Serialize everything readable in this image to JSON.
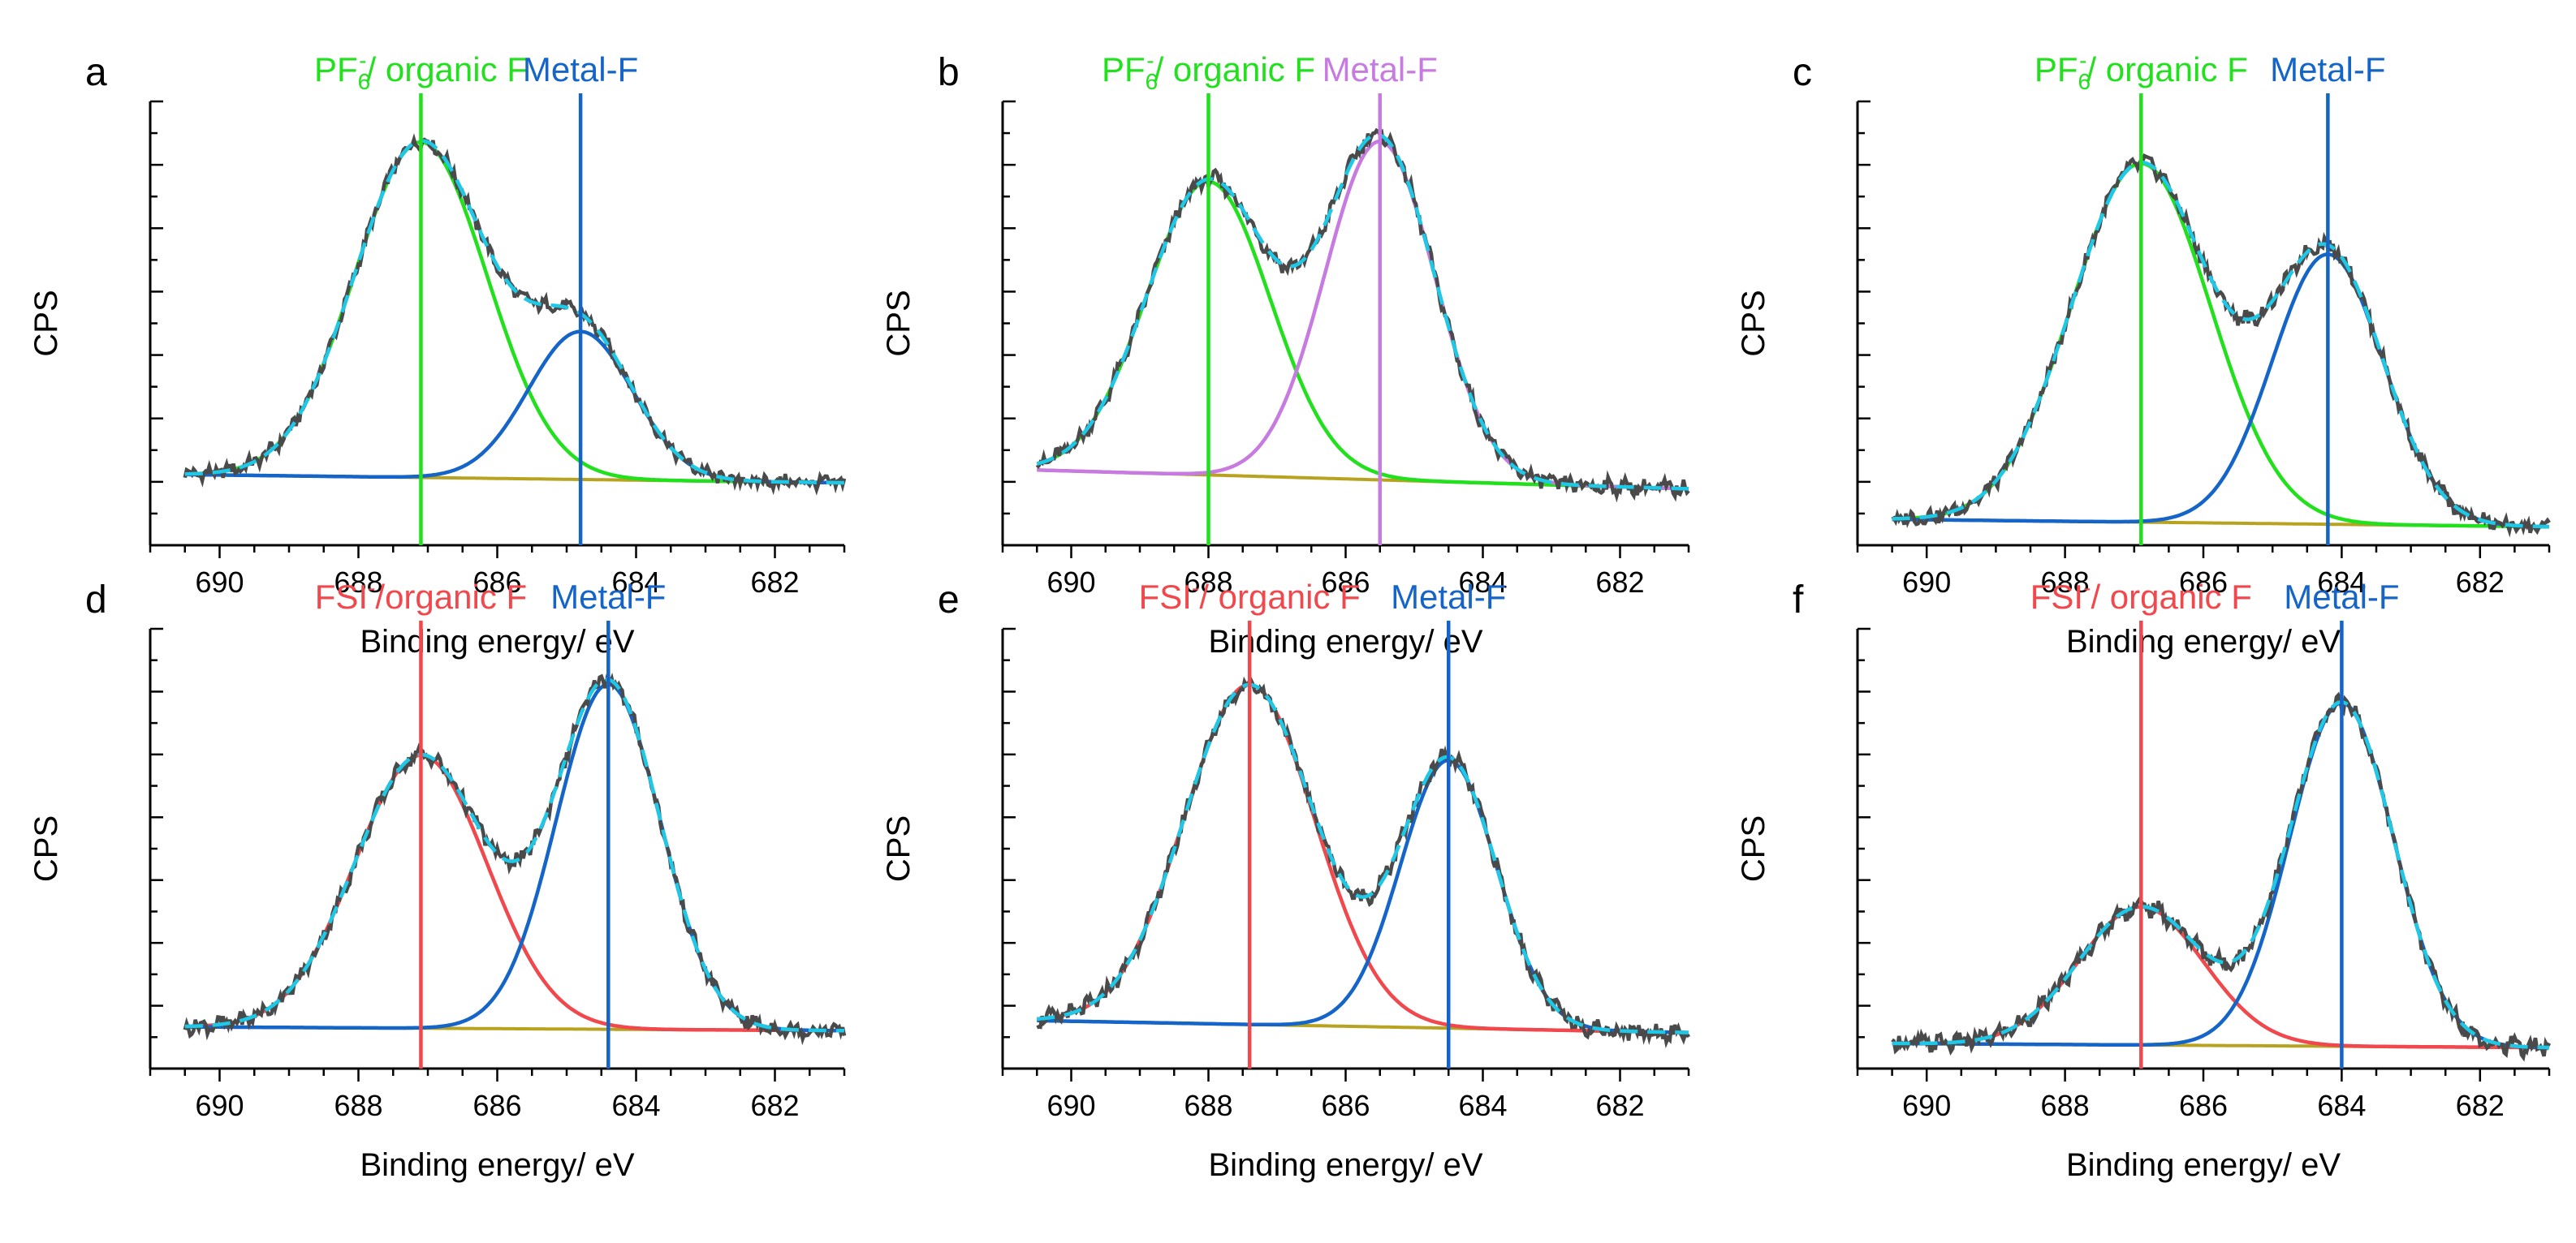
{
  "figure": {
    "axis_xlabel": "Binding energy/ eV",
    "axis_ylabel": "CPS",
    "xticks": [
      690,
      688,
      686,
      684,
      682
    ],
    "xlim": [
      691,
      681
    ]
  },
  "colors": {
    "green": "#22e01e",
    "blue": "#1565c8",
    "purple": "#c77ae0",
    "red": "#f0484c",
    "raw": "#4a4a4a",
    "fit": "#1ec8e6",
    "baseline": "#b7a320"
  },
  "chart_data": [
    {
      "type": "line",
      "panel": "a",
      "xlabel": "Binding energy/ eV",
      "ylabel": "CPS",
      "xlim": [
        691,
        681
      ],
      "ylim": [
        -0.2,
        1.15
      ],
      "baseline": {
        "start": 0.015,
        "end": -0.01
      },
      "peaks": [
        {
          "name": "PF6-/ organic F",
          "label_main": "PF",
          "label_sub": "6",
          "label_sup": "-",
          "label_rest": "/ organic F",
          "center": 687.1,
          "height": 1.02,
          "sigma": 0.95,
          "color": "green"
        },
        {
          "name": "Metal-F",
          "label_main": "Metal-F",
          "center": 684.8,
          "height": 0.45,
          "sigma": 0.75,
          "color": "blue"
        }
      ]
    },
    {
      "type": "line",
      "panel": "b",
      "xlabel": "Binding energy/ eV",
      "ylabel": "CPS",
      "xlim": [
        691,
        681
      ],
      "ylim": [
        -0.15,
        1.03
      ],
      "baseline": {
        "start": 0.05,
        "end": 0.0
      },
      "peaks": [
        {
          "name": "PF6-/ organic F",
          "label_main": "PF",
          "label_sub": "6",
          "label_sup": "-",
          "label_rest": "/ organic F",
          "center": 688.0,
          "height": 0.78,
          "sigma": 0.9,
          "color": "green"
        },
        {
          "name": "Metal-F",
          "label_main": "Metal-F",
          "center": 685.5,
          "height": 0.9,
          "sigma": 0.8,
          "color": "purple"
        }
      ]
    },
    {
      "type": "line",
      "panel": "c",
      "xlabel": "Binding energy/ eV",
      "ylabel": "CPS",
      "xlim": [
        691,
        681
      ],
      "ylim": [
        -0.05,
        1.15
      ],
      "baseline": {
        "start": 0.02,
        "end": 0.0
      },
      "peaks": [
        {
          "name": "PF6-/ organic F",
          "label_main": "PF",
          "label_sub": "6",
          "label_sup": "-",
          "label_rest": "/ organic F",
          "center": 686.9,
          "height": 0.97,
          "sigma": 1.0,
          "color": "green"
        },
        {
          "name": "Metal-F",
          "label_main": "Metal-F",
          "center": 684.2,
          "height": 0.73,
          "sigma": 0.8,
          "color": "blue"
        }
      ]
    },
    {
      "type": "line",
      "panel": "d",
      "xlabel": "Binding energy/ eV",
      "ylabel": "CPS",
      "xlim": [
        691,
        681
      ],
      "ylim": [
        -0.1,
        1.06
      ],
      "baseline": {
        "start": 0.01,
        "end": 0.0
      },
      "peaks": [
        {
          "name": "FSI-/organic F",
          "label_main": "FSI",
          "label_sup": "-",
          "label_rest": "/organic F",
          "center": 687.1,
          "height": 0.72,
          "sigma": 0.95,
          "color": "red"
        },
        {
          "name": "Metal-F",
          "label_main": "Metal-F",
          "center": 684.4,
          "height": 0.91,
          "sigma": 0.75,
          "color": "blue"
        }
      ]
    },
    {
      "type": "line",
      "panel": "e",
      "xlabel": "Binding energy/ eV",
      "ylabel": "CPS",
      "xlim": [
        691,
        681
      ],
      "ylim": [
        -0.1,
        1.0
      ],
      "baseline": {
        "start": 0.02,
        "end": -0.01
      },
      "peaks": [
        {
          "name": "FSI-/ organic F",
          "label_main": "FSI",
          "label_sup": "-",
          "label_rest": "/ organic F",
          "center": 687.4,
          "height": 0.85,
          "sigma": 0.95,
          "color": "red"
        },
        {
          "name": "Metal-F",
          "label_main": "Metal-F",
          "center": 684.5,
          "height": 0.67,
          "sigma": 0.7,
          "color": "blue"
        }
      ]
    },
    {
      "type": "line",
      "panel": "f",
      "xlabel": "Binding energy/ eV",
      "ylabel": "CPS",
      "xlim": [
        691,
        681
      ],
      "ylim": [
        -0.05,
        1.0
      ],
      "baseline": {
        "start": 0.01,
        "end": 0.0
      },
      "peaks": [
        {
          "name": "FSI-/ organic F",
          "label_main": "FSI",
          "label_sup": "-",
          "label_rest": "/ organic F",
          "center": 686.9,
          "height": 0.33,
          "sigma": 0.9,
          "color": "red"
        },
        {
          "name": "Metal-F",
          "label_main": "Metal-F",
          "center": 684.0,
          "height": 0.82,
          "sigma": 0.75,
          "color": "blue"
        }
      ]
    }
  ]
}
